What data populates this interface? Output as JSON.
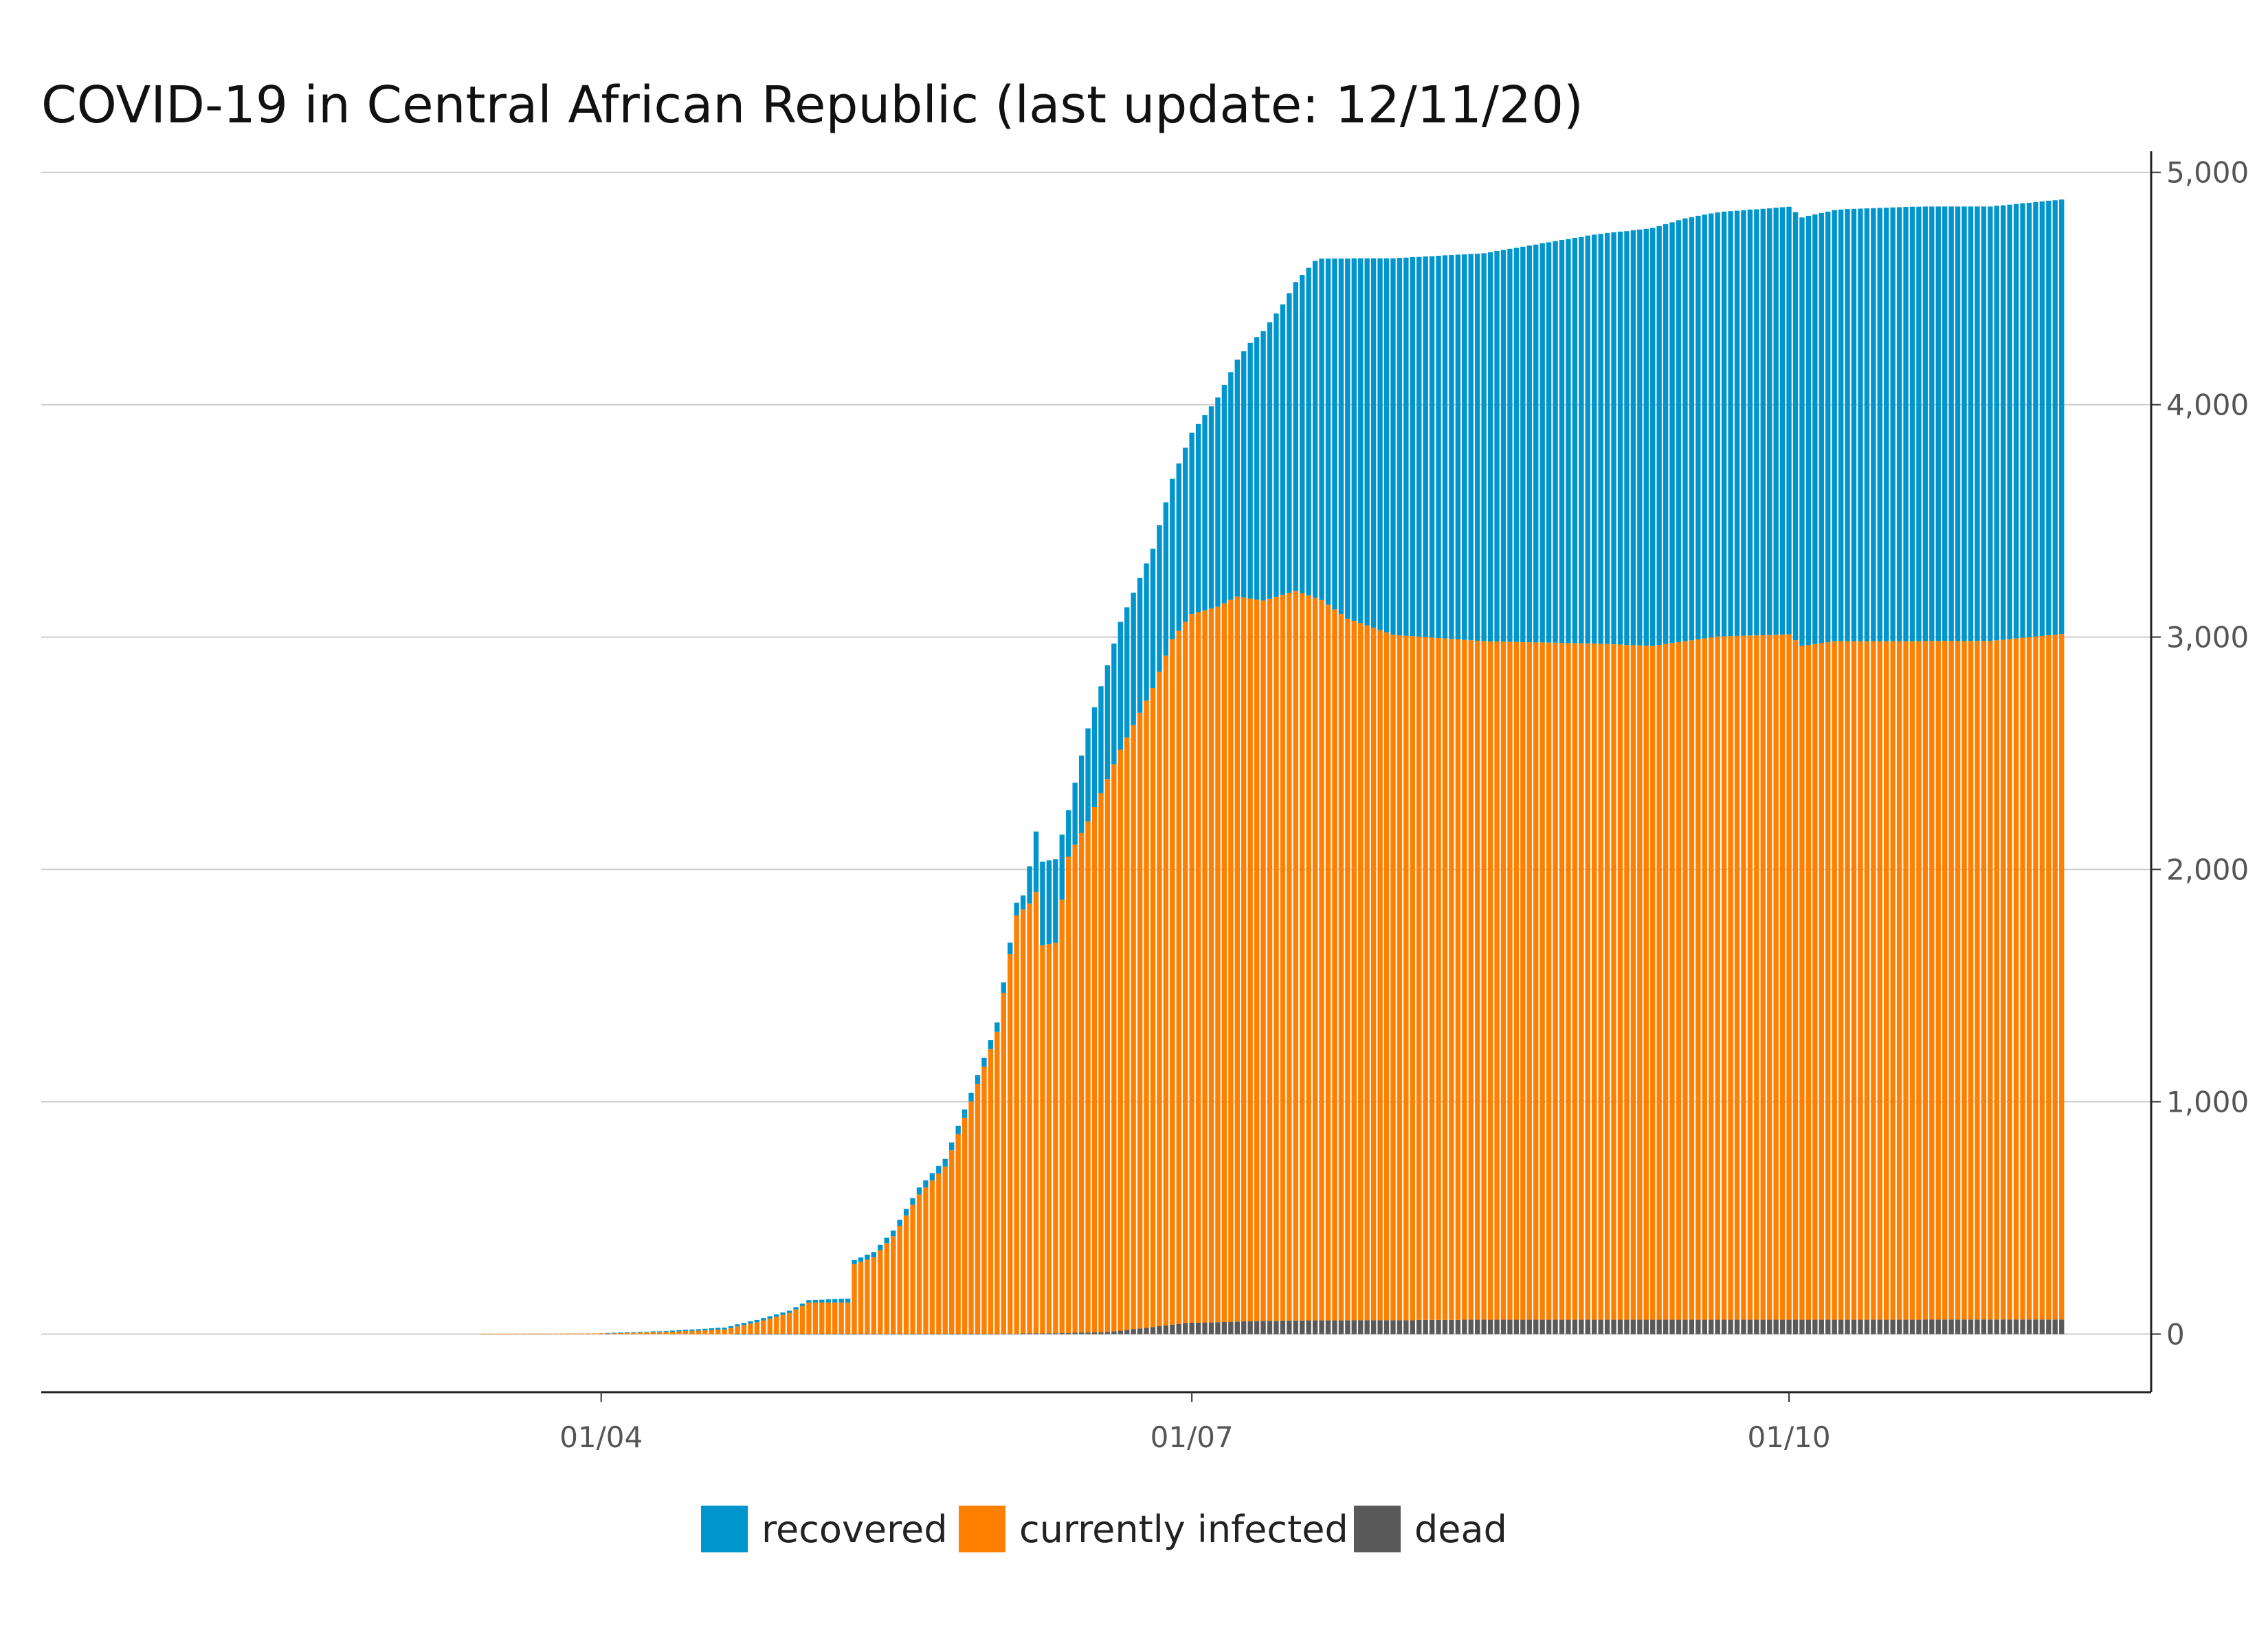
{
  "chart_data": {
    "type": "bar",
    "stacked": true,
    "title": "COVID-19 in Central African Republic (last update: 12/11/20)",
    "xlabel": "",
    "ylabel": "",
    "x_range": [
      "2020-03-14",
      "2020-11-12"
    ],
    "x_ticks": [
      "01/04",
      "01/07",
      "01/10"
    ],
    "x_tick_dates": [
      "2020-04-01",
      "2020-07-01",
      "2020-10-01"
    ],
    "y_ticks": [
      "0",
      "1,000",
      "2,000",
      "3,000",
      "4,000",
      "5,000"
    ],
    "y_tick_values": [
      0,
      1000,
      2000,
      3000,
      4000,
      5000
    ],
    "ylim": [
      -250,
      5150
    ],
    "y_axis_position": "right",
    "grid": true,
    "legend_position": "bottom",
    "series_order": [
      "dead",
      "currently infected",
      "recovered"
    ],
    "colors": {
      "recovered": "#0095CC",
      "currently infected": "#FF8000",
      "dead": "#595959"
    },
    "series_points": {
      "dead": [
        [
          "2020-03-14",
          0
        ],
        [
          "2020-05-31",
          1
        ],
        [
          "2020-06-10",
          4
        ],
        [
          "2020-06-18",
          9
        ],
        [
          "2020-06-25",
          30
        ],
        [
          "2020-06-30",
          48
        ],
        [
          "2020-07-05",
          51
        ],
        [
          "2020-07-10",
          56
        ],
        [
          "2020-07-20",
          59
        ],
        [
          "2020-08-01",
          60
        ],
        [
          "2020-08-15",
          62
        ],
        [
          "2020-10-01",
          62
        ],
        [
          "2020-11-12",
          63
        ]
      ],
      "currently infected": [
        [
          "2020-03-14",
          1
        ],
        [
          "2020-03-31",
          3
        ],
        [
          "2020-04-10",
          8
        ],
        [
          "2020-04-20",
          20
        ],
        [
          "2020-04-25",
          50
        ],
        [
          "2020-04-30",
          90
        ],
        [
          "2020-05-03",
          135
        ],
        [
          "2020-05-09",
          135
        ],
        [
          "2020-05-10",
          300
        ],
        [
          "2020-05-13",
          330
        ],
        [
          "2020-05-16",
          420
        ],
        [
          "2020-05-20",
          600
        ],
        [
          "2020-05-24",
          720
        ],
        [
          "2020-05-28",
          1000
        ],
        [
          "2020-06-01",
          1300
        ],
        [
          "2020-06-04",
          1800
        ],
        [
          "2020-06-06",
          1850
        ],
        [
          "2020-06-07",
          1900
        ],
        [
          "2020-06-08",
          1670
        ],
        [
          "2020-06-10",
          1680
        ],
        [
          "2020-06-12",
          2050
        ],
        [
          "2020-06-15",
          2200
        ],
        [
          "2020-06-20",
          2500
        ],
        [
          "2020-06-25",
          2750
        ],
        [
          "2020-06-28",
          2950
        ],
        [
          "2020-07-01",
          3050
        ],
        [
          "2020-07-05",
          3080
        ],
        [
          "2020-07-08",
          3120
        ],
        [
          "2020-07-12",
          3100
        ],
        [
          "2020-07-17",
          3140
        ],
        [
          "2020-07-21",
          3100
        ],
        [
          "2020-07-25",
          3020
        ],
        [
          "2020-08-01",
          2950
        ],
        [
          "2020-08-15",
          2920
        ],
        [
          "2020-09-01",
          2910
        ],
        [
          "2020-09-10",
          2900
        ],
        [
          "2020-09-20",
          2940
        ],
        [
          "2020-10-01",
          2950
        ],
        [
          "2020-10-03",
          2900
        ],
        [
          "2020-10-08",
          2920
        ],
        [
          "2020-10-20",
          2920
        ],
        [
          "2020-11-01",
          2920
        ],
        [
          "2020-11-12",
          2950
        ]
      ],
      "recovered": [
        [
          "2020-03-14",
          0
        ],
        [
          "2020-03-31",
          0
        ],
        [
          "2020-04-25",
          10
        ],
        [
          "2020-05-03",
          10
        ],
        [
          "2020-05-20",
          30
        ],
        [
          "2020-06-01",
          40
        ],
        [
          "2020-06-05",
          60
        ],
        [
          "2020-06-08",
          360
        ],
        [
          "2020-06-10",
          360
        ],
        [
          "2020-06-12",
          200
        ],
        [
          "2020-06-15",
          400
        ],
        [
          "2020-06-20",
          550
        ],
        [
          "2020-06-25",
          600
        ],
        [
          "2020-06-30",
          750
        ],
        [
          "2020-07-05",
          900
        ],
        [
          "2020-07-10",
          1100
        ],
        [
          "2020-07-15",
          1250
        ],
        [
          "2020-07-20",
          1450
        ],
        [
          "2020-07-25",
          1550
        ],
        [
          "2020-08-01",
          1620
        ],
        [
          "2020-08-15",
          1670
        ],
        [
          "2020-09-01",
          1760
        ],
        [
          "2020-09-15",
          1820
        ],
        [
          "2020-10-01",
          1840
        ],
        [
          "2020-10-10",
          1860
        ],
        [
          "2020-10-20",
          1870
        ],
        [
          "2020-11-01",
          1870
        ],
        [
          "2020-11-12",
          1870
        ]
      ]
    }
  },
  "legend": {
    "items": [
      {
        "label": "recovered",
        "color": "#0095CC"
      },
      {
        "label": "currently infected",
        "color": "#FF8000"
      },
      {
        "label": "dead",
        "color": "#595959"
      }
    ]
  }
}
